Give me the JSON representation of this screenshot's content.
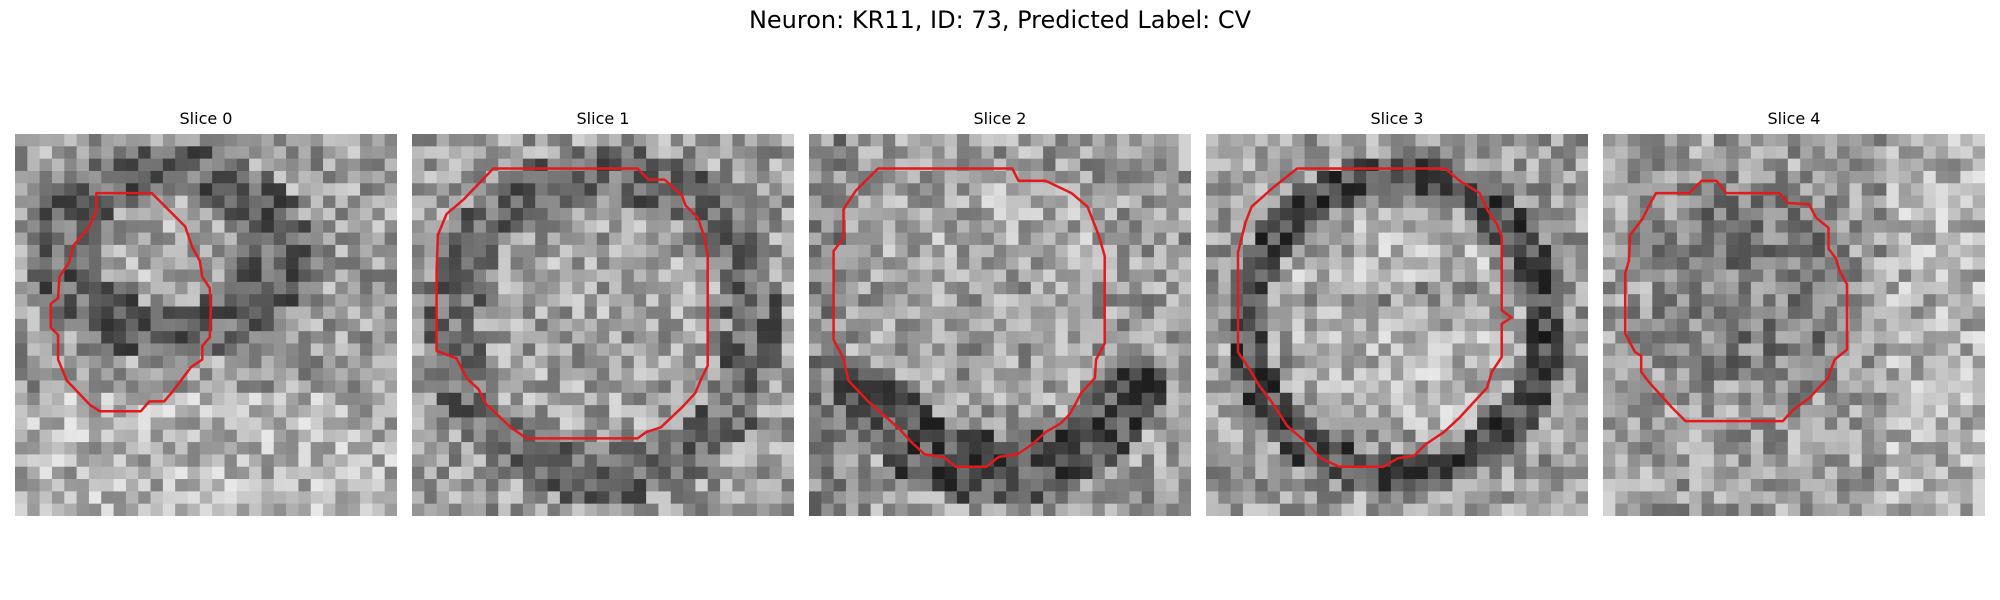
{
  "figure": {
    "title": "Neuron: KR11, ID: 73, Predicted Label: CV"
  },
  "panels": [
    {
      "title": "Slice 0",
      "contour": "small-offset",
      "seed": 11
    },
    {
      "title": "Slice 1",
      "contour": "large",
      "seed": 23
    },
    {
      "title": "Slice 2",
      "contour": "large-low",
      "seed": 37
    },
    {
      "title": "Slice 3",
      "contour": "large-ring",
      "seed": 41
    },
    {
      "title": "Slice 4",
      "contour": "medium",
      "seed": 59
    }
  ],
  "colors": {
    "contour": "#e31a1c",
    "background": "#ffffff"
  }
}
